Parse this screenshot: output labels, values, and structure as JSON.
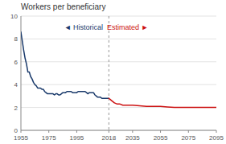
{
  "chart_data": {
    "type": "line",
    "title": "Workers per beneficiary",
    "xlim": [
      1955,
      2095
    ],
    "xticks": [
      1955,
      1975,
      1995,
      2018,
      2035,
      2055,
      2075,
      2095
    ],
    "ylim": [
      0,
      10
    ],
    "yticks": [
      0,
      2,
      4,
      6,
      8,
      10
    ],
    "grid": true,
    "divider_x": 2018,
    "series": [
      {
        "name": "◄ Historical",
        "color": "#1a3a6b",
        "x": [
          1955,
          1956,
          1957,
          1958,
          1959,
          1960,
          1961,
          1962,
          1963,
          1964,
          1965,
          1966,
          1967,
          1968,
          1969,
          1970,
          1971,
          1972,
          1973,
          1974,
          1975,
          1976,
          1977,
          1978,
          1979,
          1980,
          1981,
          1982,
          1983,
          1984,
          1985,
          1986,
          1987,
          1988,
          1989,
          1990,
          1991,
          1992,
          1993,
          1994,
          1995,
          1996,
          1997,
          1998,
          1999,
          2000,
          2001,
          2002,
          2003,
          2004,
          2005,
          2006,
          2007,
          2008,
          2009,
          2010,
          2011,
          2012,
          2013,
          2014,
          2015,
          2016,
          2017,
          2018
        ],
        "values": [
          8.6,
          7.8,
          7.0,
          6.3,
          5.8,
          5.1,
          5.1,
          4.7,
          4.5,
          4.2,
          4.0,
          3.9,
          3.7,
          3.7,
          3.7,
          3.6,
          3.6,
          3.4,
          3.3,
          3.2,
          3.2,
          3.2,
          3.2,
          3.2,
          3.1,
          3.2,
          3.2,
          3.1,
          3.1,
          3.2,
          3.3,
          3.3,
          3.3,
          3.4,
          3.4,
          3.4,
          3.4,
          3.3,
          3.3,
          3.3,
          3.3,
          3.4,
          3.4,
          3.4,
          3.4,
          3.4,
          3.4,
          3.3,
          3.2,
          3.3,
          3.3,
          3.3,
          3.3,
          3.1,
          3.0,
          2.9,
          2.9,
          2.9,
          2.8,
          2.8,
          2.8,
          2.8,
          2.8,
          2.8
        ]
      },
      {
        "name": "Estimated ►",
        "color": "#cc1111",
        "x": [
          2018,
          2019,
          2020,
          2022,
          2024,
          2026,
          2028,
          2030,
          2035,
          2040,
          2045,
          2050,
          2055,
          2060,
          2065,
          2070,
          2075,
          2080,
          2085,
          2090,
          2095
        ],
        "values": [
          2.8,
          2.7,
          2.6,
          2.4,
          2.3,
          2.3,
          2.2,
          2.2,
          2.2,
          2.15,
          2.1,
          2.1,
          2.1,
          2.05,
          2.0,
          2.0,
          2.0,
          2.0,
          2.0,
          2.0,
          2.0
        ]
      }
    ]
  }
}
